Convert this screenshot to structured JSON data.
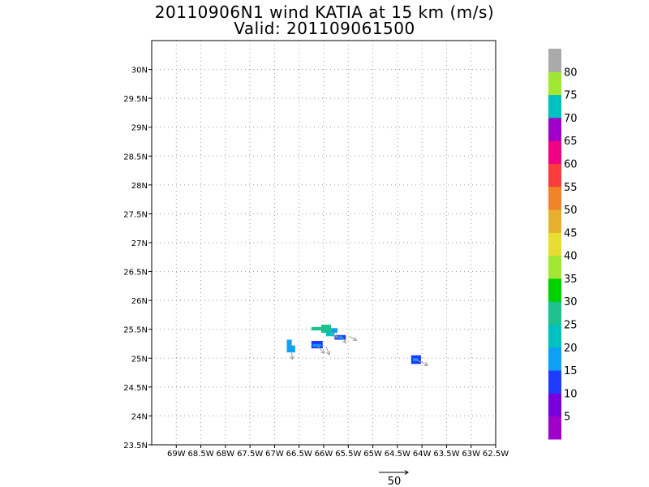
{
  "title": {
    "line1": "20110906N1 wind KATIA at 15 km (m/s)",
    "line2": "Valid: 201109061500"
  },
  "map": {
    "lon_range": [
      -69.5,
      -62.5
    ],
    "lat_range": [
      23.5,
      30.5
    ],
    "lon_ticks": [
      {
        "v": -69,
        "label": "69W"
      },
      {
        "v": -68.5,
        "label": "68.5W"
      },
      {
        "v": -68,
        "label": "68W"
      },
      {
        "v": -67.5,
        "label": "67.5W"
      },
      {
        "v": -67,
        "label": "67W"
      },
      {
        "v": -66.5,
        "label": "66.5W"
      },
      {
        "v": -66,
        "label": "66W"
      },
      {
        "v": -65.5,
        "label": "65.5W"
      },
      {
        "v": -65,
        "label": "65W"
      },
      {
        "v": -64.5,
        "label": "64.5W"
      },
      {
        "v": -64,
        "label": "64W"
      },
      {
        "v": -63.5,
        "label": "63.5W"
      },
      {
        "v": -63,
        "label": "63W"
      },
      {
        "v": -62.5,
        "label": "62.5W"
      }
    ],
    "lat_ticks": [
      {
        "v": 23.5,
        "label": "23.5N"
      },
      {
        "v": 24,
        "label": "24N"
      },
      {
        "v": 24.5,
        "label": "24.5N"
      },
      {
        "v": 25,
        "label": "25N"
      },
      {
        "v": 25.5,
        "label": "25.5N"
      },
      {
        "v": 26,
        "label": "26N"
      },
      {
        "v": 26.5,
        "label": "26.5N"
      },
      {
        "v": 27,
        "label": "27N"
      },
      {
        "v": 27.5,
        "label": "27.5N"
      },
      {
        "v": 28,
        "label": "28N"
      },
      {
        "v": 28.5,
        "label": "28.5N"
      },
      {
        "v": 29,
        "label": "29N"
      },
      {
        "v": 29.5,
        "label": "29.5N"
      },
      {
        "v": 30,
        "label": "30N"
      }
    ],
    "grid": true,
    "wind_cells": [
      {
        "lon0": -66.75,
        "lon1": -66.65,
        "lat0": 25.22,
        "lat1": 25.32,
        "color": "#0f9ff5"
      },
      {
        "lon0": -66.75,
        "lon1": -66.58,
        "lat0": 25.1,
        "lat1": 25.22,
        "color": "#0f9ff5"
      },
      {
        "lon0": -66.25,
        "lon1": -66.05,
        "lat0": 25.48,
        "lat1": 25.54,
        "color": "#1ec08c"
      },
      {
        "lon0": -66.05,
        "lon1": -65.85,
        "lat0": 25.44,
        "lat1": 25.58,
        "color": "#1ec08c"
      },
      {
        "lon0": -65.95,
        "lon1": -65.78,
        "lat0": 25.38,
        "lat1": 25.46,
        "color": "#00c0c0"
      },
      {
        "lon0": -65.85,
        "lon1": -65.72,
        "lat0": 25.44,
        "lat1": 25.52,
        "color": "#0f9ff5"
      },
      {
        "lon0": -65.78,
        "lon1": -65.55,
        "lat0": 25.32,
        "lat1": 25.4,
        "color": "#1e3cff"
      },
      {
        "lon0": -65.7,
        "lon1": -65.62,
        "lat0": 25.34,
        "lat1": 25.38,
        "color": "#0f9ff5"
      },
      {
        "lon0": -66.25,
        "lon1": -66.02,
        "lat0": 25.17,
        "lat1": 25.3,
        "color": "#1e3cff"
      },
      {
        "lon0": -66.22,
        "lon1": -66.05,
        "lat0": 25.2,
        "lat1": 25.24,
        "color": "#0f9ff5"
      },
      {
        "lon0": -64.22,
        "lon1": -64.02,
        "lat0": 24.9,
        "lat1": 25.05,
        "color": "#1e3cff"
      },
      {
        "lon0": -64.18,
        "lon1": -64.08,
        "lat0": 24.95,
        "lat1": 25.0,
        "color": "#0f9ff5"
      }
    ],
    "wind_vectors": [
      {
        "lon": -66.65,
        "lat": 25.12,
        "u": 0.3,
        "v": -5.0
      },
      {
        "lon": -66.12,
        "lat": 25.2,
        "u": 4.0,
        "v": -4.0
      },
      {
        "lon": -65.95,
        "lat": 25.2,
        "u": 2.0,
        "v": -5.0
      },
      {
        "lon": -65.85,
        "lat": 25.45,
        "u": 4.0,
        "v": -3.5
      },
      {
        "lon": -65.62,
        "lat": 25.36,
        "u": 2.0,
        "v": -3.5
      },
      {
        "lon": -65.48,
        "lat": 25.38,
        "u": 4.5,
        "v": -2.5
      },
      {
        "lon": -64.08,
        "lat": 24.96,
        "u": 6.0,
        "v": -3.0
      }
    ],
    "vector_color": "#a0a0a0",
    "reference_vector": {
      "label": "50",
      "magnitude": 50
    }
  },
  "colorbar": {
    "bins": [
      "#a000c8",
      "#7800dc",
      "#1e3cff",
      "#0f9ff5",
      "#00c0c0",
      "#1ec08c",
      "#00d200",
      "#a0e632",
      "#e6dc32",
      "#e6af2d",
      "#f08228",
      "#fa3c3c",
      "#f00082",
      "#a000c8",
      "#00c0c0",
      "#a0e632",
      "#aaaaaa"
    ],
    "labels": [
      {
        "bin": 1,
        "text": "5"
      },
      {
        "bin": 2,
        "text": "10"
      },
      {
        "bin": 3,
        "text": "15"
      },
      {
        "bin": 4,
        "text": "20"
      },
      {
        "bin": 5,
        "text": "25"
      },
      {
        "bin": 6,
        "text": "30"
      },
      {
        "bin": 7,
        "text": "35"
      },
      {
        "bin": 8,
        "text": "40"
      },
      {
        "bin": 9,
        "text": "45"
      },
      {
        "bin": 10,
        "text": "50"
      },
      {
        "bin": 11,
        "text": "55"
      },
      {
        "bin": 12,
        "text": "60"
      },
      {
        "bin": 13,
        "text": "65"
      },
      {
        "bin": 14,
        "text": "70"
      },
      {
        "bin": 15,
        "text": "75"
      },
      {
        "bin": 16,
        "text": "80"
      }
    ]
  }
}
